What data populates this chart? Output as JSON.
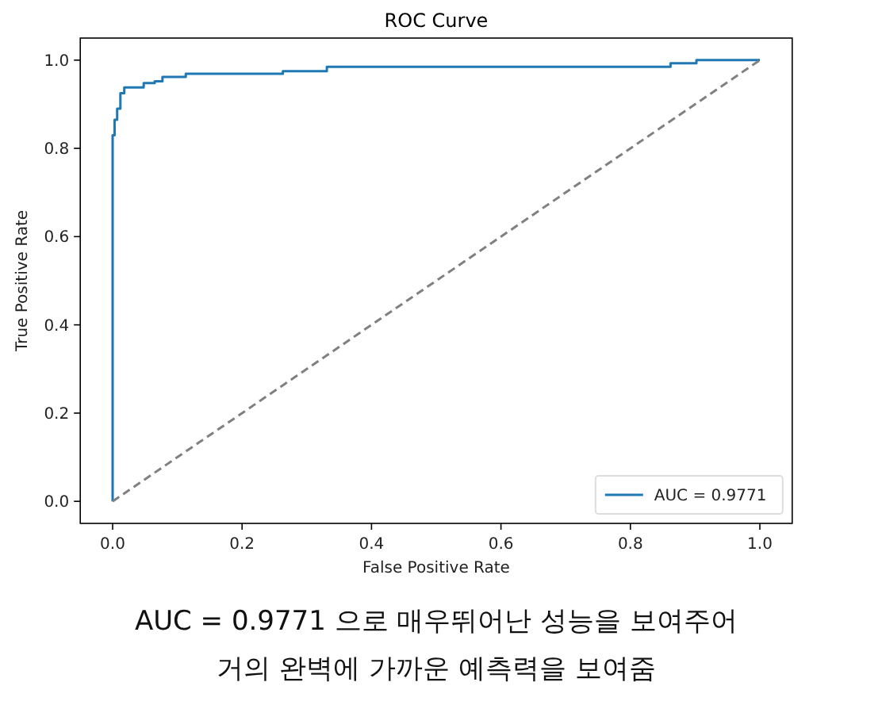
{
  "chart_data": {
    "type": "line",
    "title": "ROC Curve",
    "xlabel": "False Positive Rate",
    "ylabel": "True Positive Rate",
    "xlim": [
      -0.05,
      1.05
    ],
    "ylim": [
      -0.05,
      1.05
    ],
    "xticks": [
      {
        "value": 0,
        "label": "0.0"
      },
      0.2,
      0.4,
      0.6,
      0.8,
      {
        "value": 1,
        "label": "1.0"
      }
    ],
    "yticks": [
      {
        "value": 0,
        "label": "0.0"
      },
      0.2,
      0.4,
      0.6,
      0.8,
      {
        "value": 1,
        "label": "1.0"
      }
    ],
    "legend": "bottom right",
    "series": [
      {
        "name": "AUC = 0.9771",
        "color": "#1f77b4",
        "line_style": "solid",
        "x": [
          0,
          0,
          0.003,
          0.003,
          0.007,
          0.007,
          0.012,
          0.012,
          0.018,
          0.018,
          0.048,
          0.048,
          0.065,
          0.065,
          0.077,
          0.077,
          0.113,
          0.113,
          0.263,
          0.263,
          0.331,
          0.331,
          0.862,
          0.862,
          0.902,
          0.902,
          1.0
        ],
        "values": [
          0,
          0.83,
          0.83,
          0.865,
          0.865,
          0.89,
          0.89,
          0.925,
          0.925,
          0.938,
          0.938,
          0.948,
          0.948,
          0.952,
          0.952,
          0.962,
          0.962,
          0.969,
          0.969,
          0.975,
          0.975,
          0.985,
          0.985,
          0.993,
          0.993,
          1.0,
          1.0
        ]
      },
      {
        "color": "#808080",
        "line_style": "dashed",
        "x": [
          0,
          1
        ],
        "values": [
          0,
          1
        ]
      }
    ],
    "annotations": [
      "AUC = 0.9771 으로 매우뛰어난 성능을 보여주어",
      "거의 완벽에 가까운 예측력을 보여줌"
    ]
  }
}
